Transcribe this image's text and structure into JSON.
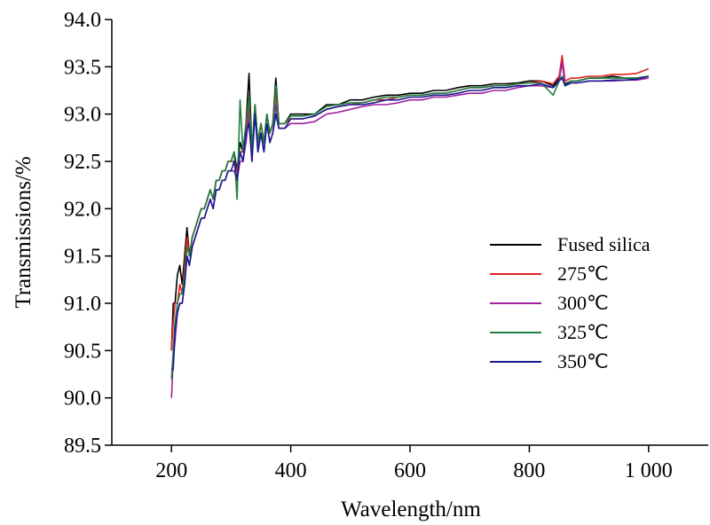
{
  "chart_data": {
    "type": "line",
    "xlabel": "Wavelength/nm",
    "ylabel": "Transmissions/%",
    "xlim": [
      100,
      1100
    ],
    "ylim": [
      89.5,
      94.0
    ],
    "x_ticks": [
      200,
      400,
      600,
      800,
      1000
    ],
    "x_tick_labels": [
      "200",
      "400",
      "600",
      "800",
      "1 000"
    ],
    "y_ticks": [
      89.5,
      90.0,
      90.5,
      91.0,
      91.5,
      92.0,
      92.5,
      93.0,
      93.5,
      94.0
    ],
    "y_tick_labels": [
      "89.5",
      "90.0",
      "90.5",
      "91.0",
      "91.5",
      "92.0",
      "92.5",
      "93.0",
      "93.5",
      "94.0"
    ],
    "grid": false,
    "legend_position": "center-right",
    "x": [
      200,
      203,
      206,
      210,
      214,
      218,
      222,
      226,
      230,
      235,
      240,
      245,
      250,
      255,
      260,
      265,
      270,
      275,
      280,
      285,
      290,
      295,
      300,
      305,
      310,
      315,
      320,
      325,
      330,
      335,
      340,
      345,
      350,
      355,
      360,
      365,
      370,
      375,
      380,
      390,
      400,
      420,
      440,
      460,
      480,
      500,
      520,
      540,
      560,
      580,
      600,
      620,
      640,
      660,
      680,
      700,
      720,
      740,
      760,
      780,
      800,
      820,
      840,
      850,
      855,
      860,
      870,
      880,
      900,
      920,
      940,
      960,
      980,
      1000
    ],
    "series": [
      {
        "name": "Fused silica",
        "color": "#000000",
        "values": [
          90.5,
          91.0,
          91.0,
          91.3,
          91.4,
          91.2,
          91.5,
          91.8,
          91.5,
          91.7,
          91.8,
          91.9,
          92.0,
          92.0,
          92.1,
          92.2,
          92.1,
          92.3,
          92.3,
          92.4,
          92.4,
          92.5,
          92.5,
          92.6,
          92.4,
          92.7,
          92.6,
          92.9,
          93.43,
          92.6,
          93.1,
          92.7,
          92.9,
          92.7,
          93.0,
          92.8,
          92.9,
          93.38,
          92.9,
          92.9,
          93.0,
          93.0,
          93.0,
          93.1,
          93.1,
          93.15,
          93.15,
          93.18,
          93.2,
          93.2,
          93.22,
          93.22,
          93.25,
          93.25,
          93.28,
          93.3,
          93.3,
          93.32,
          93.32,
          93.33,
          93.35,
          93.35,
          93.3,
          93.38,
          93.38,
          93.32,
          93.35,
          93.35,
          93.38,
          93.38,
          93.4,
          93.38,
          93.38,
          93.4
        ]
      },
      {
        "name": "275℃",
        "color": "#e02020",
        "values": [
          90.5,
          90.8,
          91.0,
          91.0,
          91.2,
          91.1,
          91.4,
          91.7,
          91.5,
          91.7,
          91.8,
          91.9,
          92.0,
          92.0,
          92.1,
          92.2,
          92.1,
          92.3,
          92.3,
          92.4,
          92.4,
          92.5,
          92.5,
          92.5,
          92.4,
          92.6,
          92.6,
          92.8,
          93.1,
          92.6,
          93.0,
          92.7,
          92.9,
          92.7,
          92.9,
          92.8,
          92.9,
          93.2,
          92.9,
          92.9,
          92.95,
          92.95,
          92.98,
          93.05,
          93.08,
          93.1,
          93.12,
          93.15,
          93.15,
          93.18,
          93.2,
          93.2,
          93.22,
          93.22,
          93.25,
          93.28,
          93.28,
          93.3,
          93.3,
          93.32,
          93.33,
          93.35,
          93.32,
          93.4,
          93.62,
          93.35,
          93.38,
          93.38,
          93.4,
          93.4,
          93.42,
          93.42,
          93.43,
          93.48
        ]
      },
      {
        "name": "300℃",
        "color": "#a020a0",
        "values": [
          90.0,
          90.4,
          90.6,
          90.9,
          91.0,
          91.0,
          91.2,
          91.5,
          91.4,
          91.6,
          91.7,
          91.8,
          91.9,
          91.9,
          92.0,
          92.1,
          92.0,
          92.2,
          92.2,
          92.3,
          92.3,
          92.4,
          92.4,
          92.4,
          92.3,
          92.5,
          92.5,
          92.7,
          93.0,
          92.5,
          93.1,
          92.6,
          92.8,
          92.6,
          92.9,
          92.7,
          92.8,
          93.1,
          92.85,
          92.85,
          92.9,
          92.9,
          92.92,
          93.0,
          93.02,
          93.05,
          93.08,
          93.1,
          93.1,
          93.12,
          93.15,
          93.15,
          93.18,
          93.18,
          93.2,
          93.22,
          93.22,
          93.25,
          93.25,
          93.28,
          93.3,
          93.3,
          93.28,
          93.35,
          93.55,
          93.3,
          93.33,
          93.33,
          93.35,
          93.35,
          93.35,
          93.36,
          93.36,
          93.38
        ]
      },
      {
        "name": "325℃",
        "color": "#208040",
        "values": [
          90.2,
          90.5,
          90.8,
          91.0,
          91.1,
          91.1,
          91.3,
          91.6,
          91.5,
          91.7,
          91.8,
          91.9,
          92.0,
          92.0,
          92.1,
          92.2,
          92.1,
          92.3,
          92.3,
          92.4,
          92.4,
          92.5,
          92.5,
          92.6,
          92.1,
          93.15,
          92.6,
          92.9,
          93.2,
          92.6,
          93.1,
          92.7,
          92.9,
          92.7,
          93.0,
          92.8,
          92.9,
          93.3,
          92.9,
          92.9,
          92.98,
          92.98,
          93.0,
          93.08,
          93.1,
          93.12,
          93.12,
          93.15,
          93.18,
          93.18,
          93.2,
          93.2,
          93.22,
          93.22,
          93.25,
          93.28,
          93.28,
          93.3,
          93.3,
          93.32,
          93.33,
          93.33,
          93.2,
          93.35,
          93.4,
          93.3,
          93.35,
          93.35,
          93.38,
          93.38,
          93.38,
          93.38,
          93.38,
          93.4
        ]
      },
      {
        "name": "350℃",
        "color": "#1a1a90",
        "values": [
          90.3,
          90.3,
          90.7,
          90.9,
          91.0,
          91.0,
          91.2,
          91.5,
          91.4,
          91.6,
          91.7,
          91.8,
          91.9,
          91.9,
          92.0,
          92.1,
          92.0,
          92.2,
          92.2,
          92.3,
          92.3,
          92.4,
          92.4,
          92.5,
          92.3,
          92.6,
          92.5,
          92.8,
          92.9,
          92.5,
          93.0,
          92.6,
          92.8,
          92.6,
          92.9,
          92.7,
          92.8,
          93.0,
          92.85,
          92.85,
          92.95,
          92.95,
          92.98,
          93.05,
          93.08,
          93.1,
          93.1,
          93.12,
          93.15,
          93.15,
          93.18,
          93.18,
          93.2,
          93.2,
          93.22,
          93.25,
          93.25,
          93.28,
          93.28,
          93.3,
          93.3,
          93.32,
          93.28,
          93.35,
          93.38,
          93.3,
          93.33,
          93.33,
          93.35,
          93.35,
          93.36,
          93.36,
          93.37,
          93.4
        ]
      }
    ]
  }
}
